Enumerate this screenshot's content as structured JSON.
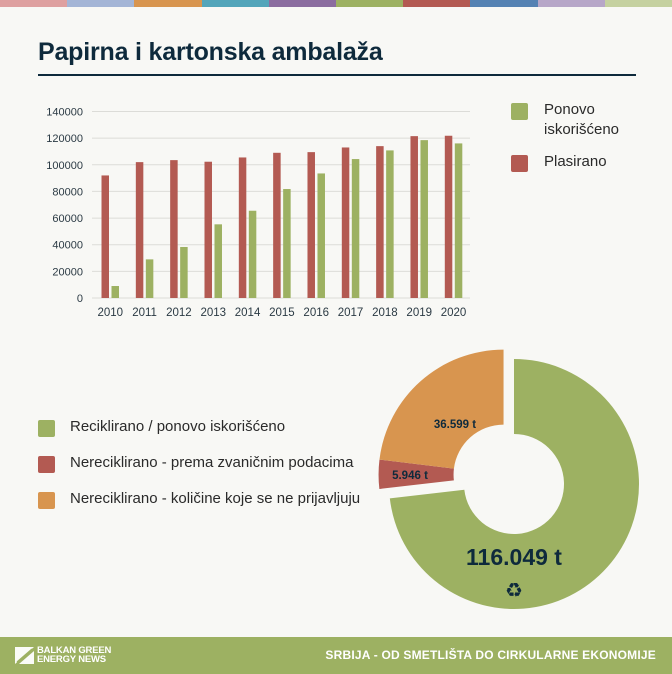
{
  "colors": {
    "stripes": [
      "#dea0a0",
      "#a4b5d6",
      "#d8954f",
      "#53a5ba",
      "#8b6d9f",
      "#9db162",
      "#b35a52",
      "#5582b3",
      "#b7a7c8",
      "#c5d1a0"
    ],
    "green": "#9db162",
    "red": "#b35a52",
    "orange": "#d8954f",
    "title": "#0e2a3c",
    "footer": "#9db162"
  },
  "header": {
    "title": "Papirna i kartonska ambalaža"
  },
  "chart_data": [
    {
      "type": "bar",
      "title": "",
      "xlabel": "",
      "ylabel": "",
      "ylim": [
        0,
        140000
      ],
      "yticks": [
        "0",
        "20000",
        "40000",
        "60000",
        "80000",
        "100000",
        "120000",
        "140000"
      ],
      "grid": true,
      "legend_position": "right",
      "categories": [
        "2010",
        "2011",
        "2012",
        "2013",
        "2014",
        "2015",
        "2016",
        "2017",
        "2018",
        "2019",
        "2020"
      ],
      "series": [
        {
          "name": "Plasirano",
          "color": "#b35a52",
          "values": [
            92000,
            102000,
            103500,
            102300,
            105500,
            109000,
            109500,
            113000,
            114000,
            121500,
            121800
          ]
        },
        {
          "name": "Ponovo iskorišćeno",
          "color": "#9db162",
          "values": [
            9000,
            29000,
            38300,
            55300,
            65500,
            81800,
            93500,
            104300,
            110800,
            118500,
            116049
          ]
        }
      ]
    },
    {
      "type": "pie",
      "title": "",
      "donut": true,
      "legend_position": "left",
      "categories": [
        "Reciklirano / ponovo iskorišćeno",
        "Nereciklirano - prema zvaničnim podacima",
        "Nereciklirano - količine koje se ne prijavljuju"
      ],
      "values": [
        116049,
        5946,
        36599
      ],
      "labels": [
        "116.049 t",
        "5.946 t",
        "36.599 t"
      ],
      "colors": [
        "#9db162",
        "#b35a52",
        "#d8954f"
      ],
      "exploded": [
        false,
        true,
        true
      ]
    }
  ],
  "bar_legend": {
    "items": [
      {
        "label": "Ponovo iskorišćeno",
        "color": "#9db162"
      },
      {
        "label": "Plasirano",
        "color": "#b35a52"
      }
    ]
  },
  "donut_legend": {
    "items": [
      {
        "label": "Reciklirano / ponovo iskorišćeno",
        "color": "#9db162"
      },
      {
        "label": "Nereciklirano - prema zvaničnim podacima",
        "color": "#b35a52"
      },
      {
        "label": "Nereciklirano - količine koje se ne prijavljuju",
        "color": "#d8954f"
      }
    ]
  },
  "footer": {
    "logo_line1": "BALKAN GREEN",
    "logo_line2": "ENERGY NEWS",
    "tagline": "SRBIJA - OD SMETLIŠTA DO CIRKULARNE EKONOMIJE",
    "icon": "recycle-icon"
  }
}
